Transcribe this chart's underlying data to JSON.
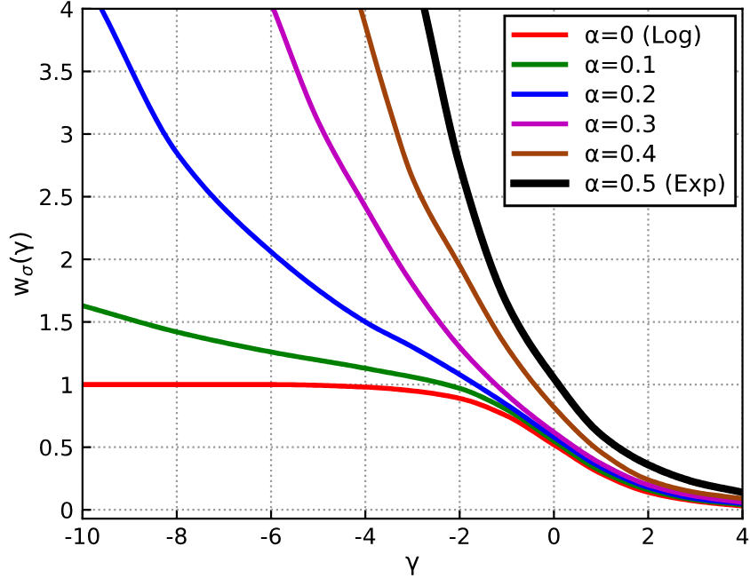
{
  "chart_data": {
    "type": "line",
    "xlabel": "γ",
    "ylabel": "w$_{σ}$(γ)",
    "xlim": [
      -10,
      4
    ],
    "ylim": [
      -0.07,
      4
    ],
    "xticks": [
      -10,
      -8,
      -6,
      -4,
      -2,
      0,
      2,
      4
    ],
    "yticks": [
      0,
      0.5,
      1,
      1.5,
      2,
      2.5,
      3,
      3.5,
      4
    ],
    "grid": true,
    "legend": "top right",
    "marker": "none",
    "line_style": "solid",
    "series": [
      {
        "name": "α=0 (Log)",
        "color": "#ff0000",
        "x": [
          -10,
          -8,
          -6,
          -4,
          -3,
          -2,
          -1,
          0,
          1,
          2,
          3,
          4
        ],
        "values": [
          1.0,
          1.0,
          1.0,
          0.98,
          0.95,
          0.89,
          0.75,
          0.52,
          0.29,
          0.14,
          0.07,
          0.03
        ]
      },
      {
        "name": "α=0.1",
        "color": "#008000",
        "x": [
          -10,
          -8,
          -6,
          -4,
          -2,
          -1,
          0,
          1,
          2,
          3,
          4
        ],
        "values": [
          1.63,
          1.42,
          1.26,
          1.13,
          0.97,
          0.8,
          0.55,
          0.31,
          0.16,
          0.08,
          0.04
        ]
      },
      {
        "name": "α=0.2",
        "color": "#0000ff",
        "x": [
          -9.6,
          -8,
          -6,
          -4,
          -3,
          -2,
          -1,
          0,
          1,
          2,
          3,
          4
        ],
        "values": [
          4.0,
          2.85,
          2.06,
          1.5,
          1.3,
          1.08,
          0.84,
          0.58,
          0.34,
          0.18,
          0.09,
          0.05
        ]
      },
      {
        "name": "α=0.3",
        "color": "#bf00bf",
        "x": [
          -5.95,
          -5,
          -4,
          -3,
          -2,
          -1,
          0,
          1,
          2,
          3,
          4
        ],
        "values": [
          4.0,
          3.1,
          2.42,
          1.8,
          1.3,
          0.92,
          0.62,
          0.37,
          0.2,
          0.11,
          0.06
        ]
      },
      {
        "name": "α=0.4",
        "color": "#a0420a",
        "x": [
          -4.1,
          -3.5,
          -3,
          -2,
          -1,
          0,
          1,
          2,
          3,
          4
        ],
        "values": [
          4.0,
          3.22,
          2.65,
          1.95,
          1.3,
          0.82,
          0.46,
          0.24,
          0.14,
          0.09
        ]
      },
      {
        "name": "α=0.5 (Exp)",
        "color": "#000000",
        "x": [
          -2.75,
          -2,
          -1,
          0,
          1,
          2,
          3,
          4
        ],
        "values": [
          4.0,
          2.75,
          1.65,
          1.05,
          0.6,
          0.36,
          0.22,
          0.14
        ]
      }
    ]
  }
}
